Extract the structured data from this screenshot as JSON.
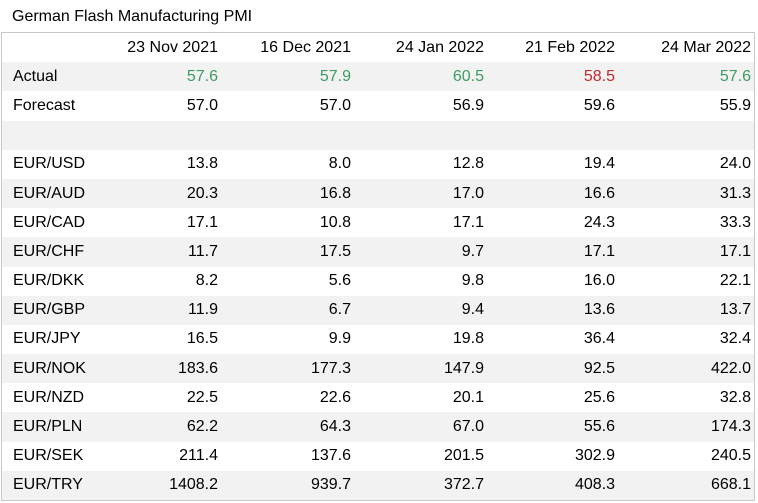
{
  "title": "German Flash Manufacturing PMI",
  "colors": {
    "positive": "#3f9a62",
    "negative": "#c0292b",
    "stripe": "#f2f2f2",
    "border": "#c8c8c8"
  },
  "chart_data": {
    "type": "table",
    "title": "German Flash Manufacturing PMI",
    "columns": [
      "23 Nov 2021",
      "16 Dec 2021",
      "24 Jan 2022",
      "21 Feb 2022",
      "24 Mar 2022"
    ],
    "rows": [
      {
        "label": "Actual",
        "values": [
          "57.6",
          "57.9",
          "60.5",
          "58.5",
          "57.6"
        ],
        "colors": [
          "positive",
          "positive",
          "positive",
          "negative",
          "positive"
        ]
      },
      {
        "label": "Forecast",
        "values": [
          "57.0",
          "57.0",
          "56.9",
          "59.6",
          "55.9"
        ]
      },
      {
        "label": "",
        "values": [
          "",
          "",
          "",
          "",
          ""
        ]
      },
      {
        "label": "EUR/USD",
        "values": [
          "13.8",
          "8.0",
          "12.8",
          "19.4",
          "24.0"
        ]
      },
      {
        "label": "EUR/AUD",
        "values": [
          "20.3",
          "16.8",
          "17.0",
          "16.6",
          "31.3"
        ]
      },
      {
        "label": "EUR/CAD",
        "values": [
          "17.1",
          "10.8",
          "17.1",
          "24.3",
          "33.3"
        ]
      },
      {
        "label": "EUR/CHF",
        "values": [
          "11.7",
          "17.5",
          "9.7",
          "17.1",
          "17.1"
        ]
      },
      {
        "label": "EUR/DKK",
        "values": [
          "8.2",
          "5.6",
          "9.8",
          "16.0",
          "22.1"
        ]
      },
      {
        "label": "EUR/GBP",
        "values": [
          "11.9",
          "6.7",
          "9.4",
          "13.6",
          "13.7"
        ]
      },
      {
        "label": "EUR/JPY",
        "values": [
          "16.5",
          "9.9",
          "19.8",
          "36.4",
          "32.4"
        ]
      },
      {
        "label": "EUR/NOK",
        "values": [
          "183.6",
          "177.3",
          "147.9",
          "92.5",
          "422.0"
        ]
      },
      {
        "label": "EUR/NZD",
        "values": [
          "22.5",
          "22.6",
          "20.1",
          "25.6",
          "32.8"
        ]
      },
      {
        "label": "EUR/PLN",
        "values": [
          "62.2",
          "64.3",
          "67.0",
          "55.6",
          "174.3"
        ]
      },
      {
        "label": "EUR/SEK",
        "values": [
          "211.4",
          "137.6",
          "201.5",
          "302.9",
          "240.5"
        ]
      },
      {
        "label": "EUR/TRY",
        "values": [
          "1408.2",
          "939.7",
          "372.7",
          "408.3",
          "668.1"
        ]
      }
    ]
  }
}
